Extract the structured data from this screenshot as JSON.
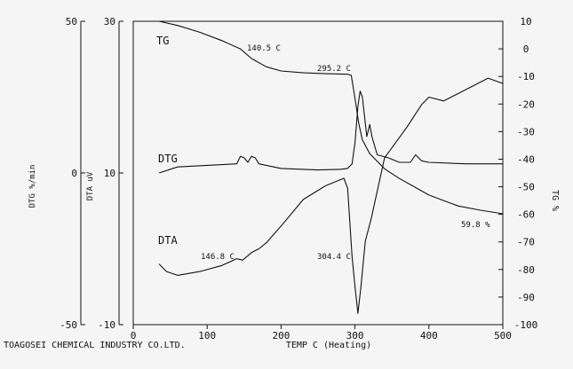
{
  "company": "TOAGOSEI CHEMICAL INDUSTRY CO.LTD.",
  "chart_data": {
    "type": "line",
    "x": {
      "label": "TEMP C  (Heating)",
      "range": [
        0,
        500
      ],
      "ticks": [
        0,
        100,
        200,
        300,
        400,
        500
      ]
    },
    "axes": {
      "dtg": {
        "label": "DTG %/min",
        "range": [
          -50,
          50
        ],
        "ticks": [
          -50,
          0,
          50
        ]
      },
      "dta": {
        "label": "DTA uV",
        "range": [
          -10,
          30
        ],
        "ticks": [
          -10,
          10,
          30
        ]
      },
      "tg": {
        "label": "TG %",
        "range": [
          -100,
          10
        ],
        "ticks": [
          10,
          0,
          -10,
          -20,
          -30,
          -40,
          -50,
          -60,
          -70,
          -80,
          -90,
          -100
        ]
      }
    },
    "series": [
      {
        "name": "TG",
        "axis": "tg",
        "points": [
          [
            35,
            10
          ],
          [
            60,
            8.5
          ],
          [
            90,
            6
          ],
          [
            120,
            3
          ],
          [
            145,
            0
          ],
          [
            160,
            -3.5
          ],
          [
            180,
            -6.5
          ],
          [
            200,
            -8
          ],
          [
            230,
            -8.7
          ],
          [
            260,
            -9
          ],
          [
            290,
            -9.2
          ],
          [
            295,
            -9.6
          ],
          [
            300,
            -18
          ],
          [
            305,
            -27
          ],
          [
            310,
            -33
          ],
          [
            320,
            -38
          ],
          [
            340,
            -43.5
          ],
          [
            360,
            -47
          ],
          [
            380,
            -50
          ],
          [
            400,
            -53
          ],
          [
            420,
            -55
          ],
          [
            440,
            -57
          ],
          [
            470,
            -58.5
          ],
          [
            500,
            -59.8
          ]
        ]
      },
      {
        "name": "DTG",
        "axis": "dtg",
        "points": [
          [
            35,
            0
          ],
          [
            60,
            2
          ],
          [
            100,
            2.5
          ],
          [
            140,
            3
          ],
          [
            145,
            5.5
          ],
          [
            150,
            5
          ],
          [
            155,
            3.5
          ],
          [
            160,
            5.5
          ],
          [
            165,
            5
          ],
          [
            170,
            3
          ],
          [
            200,
            1.5
          ],
          [
            250,
            1
          ],
          [
            280,
            1.2
          ],
          [
            290,
            1.5
          ],
          [
            296,
            3
          ],
          [
            300,
            10
          ],
          [
            304,
            22
          ],
          [
            307,
            27
          ],
          [
            310,
            25
          ],
          [
            316,
            12
          ],
          [
            320,
            16
          ],
          [
            323,
            12
          ],
          [
            330,
            6
          ],
          [
            345,
            5
          ],
          [
            360,
            3.5
          ],
          [
            375,
            3.5
          ],
          [
            382,
            6
          ],
          [
            390,
            4
          ],
          [
            400,
            3.5
          ],
          [
            450,
            3
          ],
          [
            500,
            3
          ]
        ]
      },
      {
        "name": "DTA",
        "axis": "dta",
        "points": [
          [
            35,
            -2
          ],
          [
            45,
            -3
          ],
          [
            60,
            -3.5
          ],
          [
            90,
            -3
          ],
          [
            120,
            -2.2
          ],
          [
            140,
            -1.3
          ],
          [
            148,
            -1.5
          ],
          [
            160,
            -0.5
          ],
          [
            170,
            0
          ],
          [
            180,
            0.8
          ],
          [
            200,
            3
          ],
          [
            230,
            6.5
          ],
          [
            260,
            8.3
          ],
          [
            285,
            9.3
          ],
          [
            290,
            8
          ],
          [
            296,
            -1
          ],
          [
            300,
            -5
          ],
          [
            304,
            -8.5
          ],
          [
            308,
            -5
          ],
          [
            314,
            1
          ],
          [
            322,
            4
          ],
          [
            340,
            12
          ],
          [
            370,
            16
          ],
          [
            390,
            19
          ],
          [
            400,
            20
          ],
          [
            420,
            19.5
          ],
          [
            440,
            20.5
          ],
          [
            460,
            21.5
          ],
          [
            480,
            22.5
          ],
          [
            500,
            21.8
          ]
        ]
      }
    ],
    "annotations": [
      "140.5 C",
      "295.2 C",
      "146.8 C",
      "304.4 C",
      "59.8 %"
    ],
    "grid": false
  }
}
